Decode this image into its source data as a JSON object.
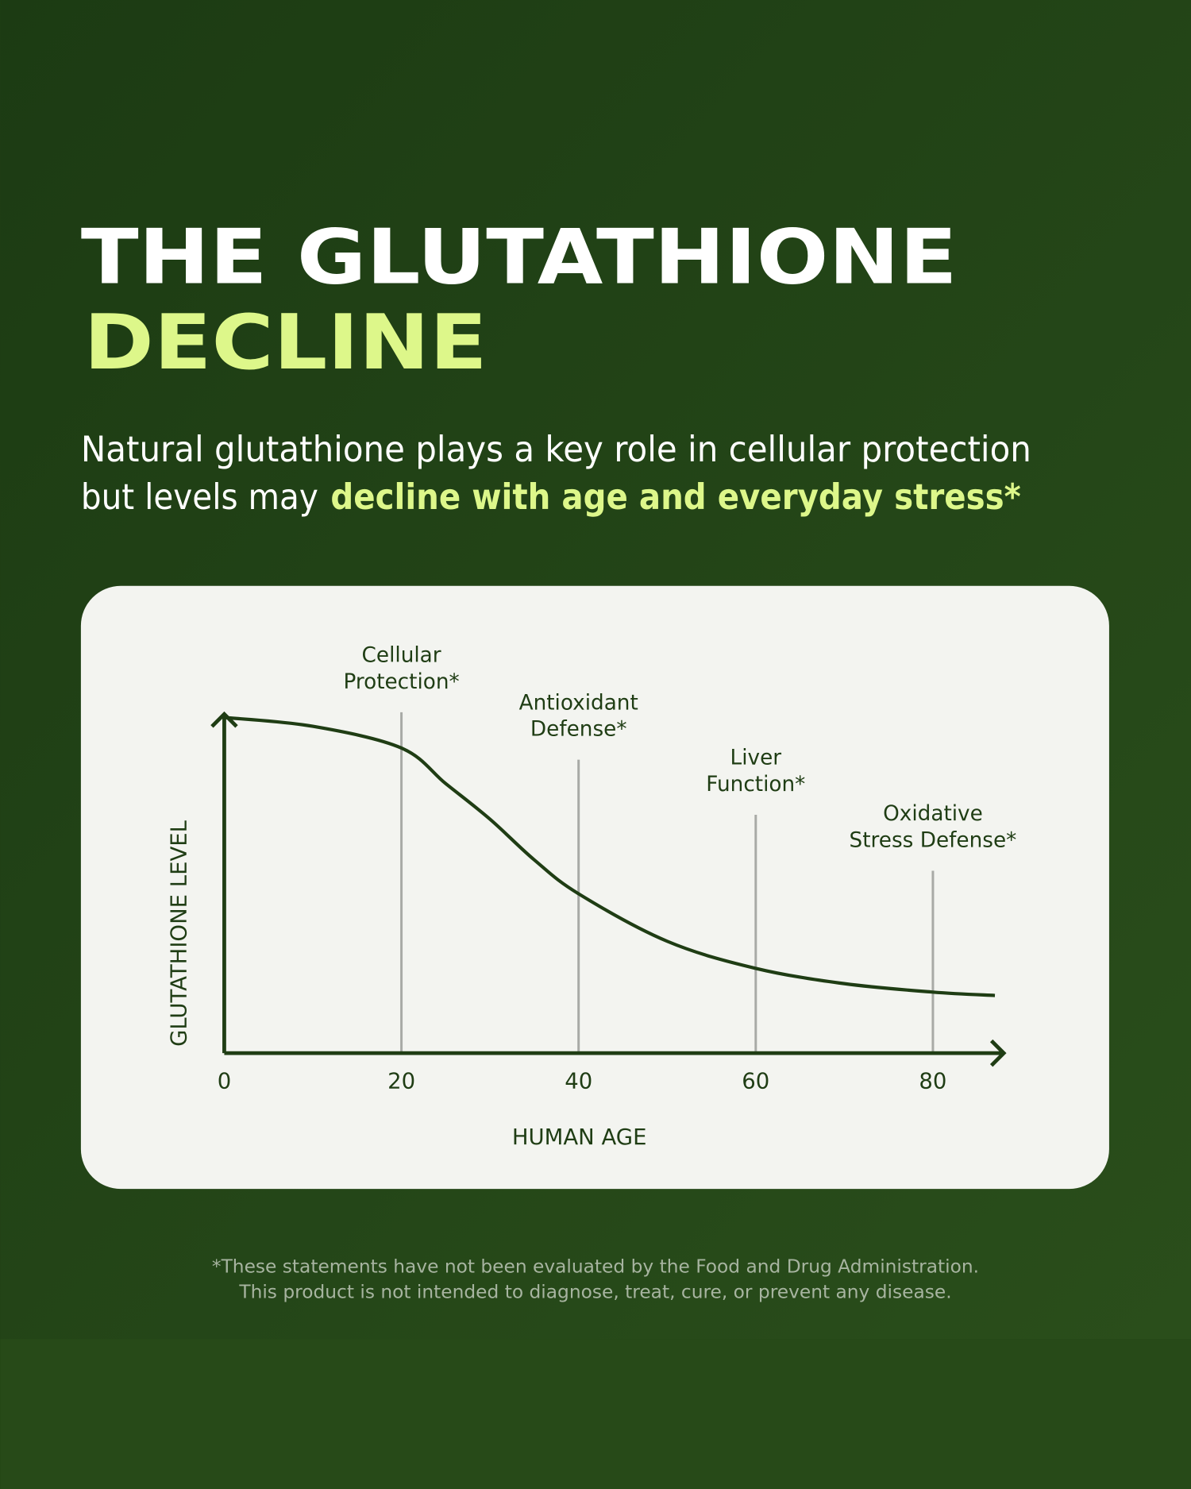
{
  "header": {
    "title_line1": "THE GLUTATHIONE",
    "title_line2": "DECLINE",
    "subtitle_line1": "Natural glutathione plays a key role in cellular protection",
    "subtitle_line2_plain": "but levels may ",
    "subtitle_line2_highlight": "decline with age and everyday stress*"
  },
  "chart_data": {
    "type": "line",
    "x_label": "HUMAN AGE",
    "y_label": "GLUTATHIONE LEVEL",
    "xlim": [
      0,
      88
    ],
    "ylim": [
      0,
      100
    ],
    "xticks": [
      0,
      20,
      40,
      60,
      80
    ],
    "x": [
      0,
      10,
      20,
      25,
      30,
      35,
      40,
      50,
      60,
      70,
      80,
      87
    ],
    "series": [
      {
        "color": "#1f3d14",
        "values": [
          99,
          96.4,
          90,
          79.5,
          69,
          57,
          47,
          33,
          25,
          20.5,
          18,
          17
        ]
      }
    ],
    "annotations": [
      {
        "x": 20,
        "lines": [
          "Cellular",
          "Protection*"
        ]
      },
      {
        "x": 40,
        "lines": [
          "Antioxidant",
          "Defense*"
        ]
      },
      {
        "x": 60,
        "lines": [
          "Liver",
          "Function*"
        ]
      },
      {
        "x": 80,
        "lines": [
          "Oxidative",
          "Stress Defense*"
        ]
      }
    ]
  },
  "footnote": [
    "*These statements have not been evaluated by the Food and Drug Administration.",
    "This product is not intended to diagnose, treat, cure, or prevent any disease."
  ]
}
